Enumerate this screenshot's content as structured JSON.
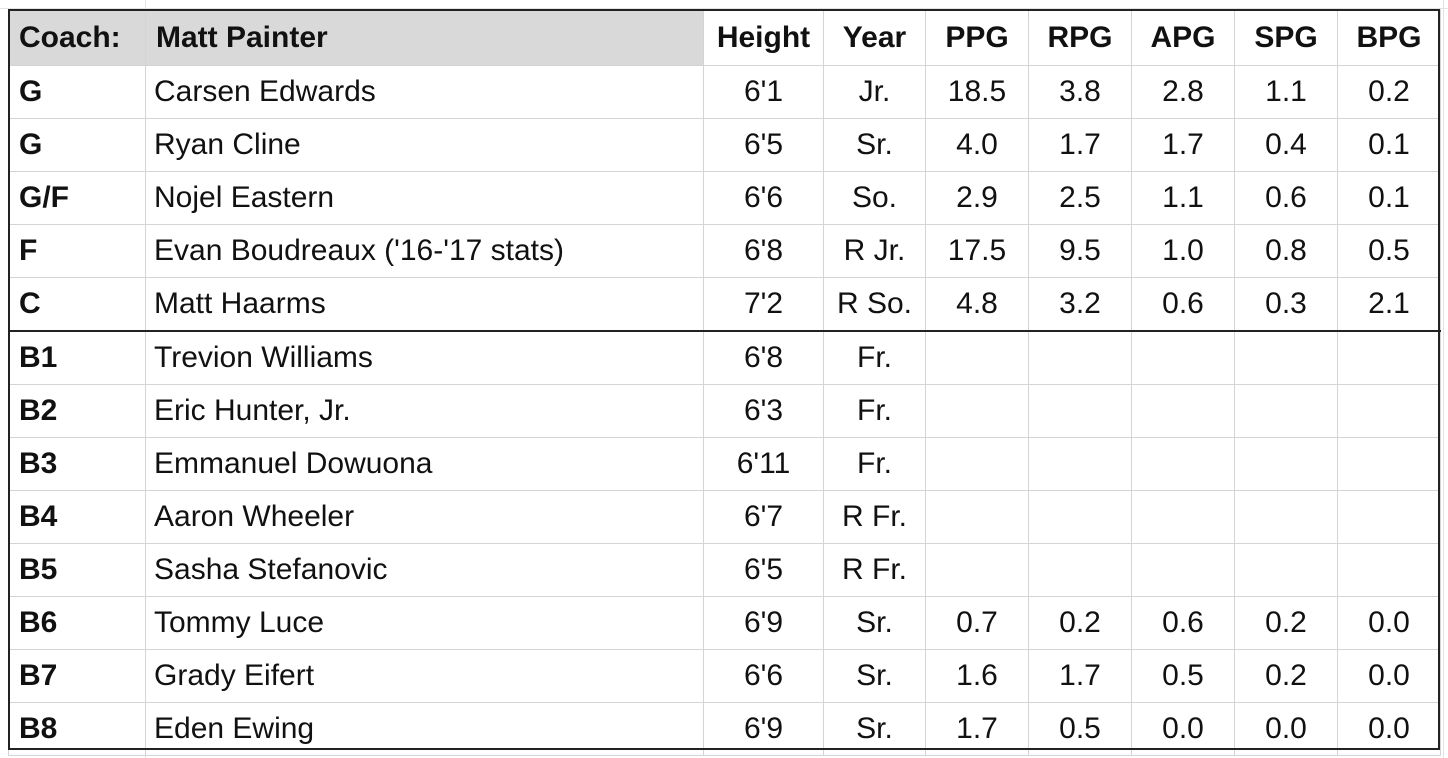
{
  "header": {
    "coach_label": "Coach:",
    "coach_name": "Matt Painter",
    "columns": [
      "Height",
      "Year",
      "PPG",
      "RPG",
      "APG",
      "SPG",
      "BPG"
    ]
  },
  "starters": [
    {
      "pos": "G",
      "name": "Carsen Edwards",
      "height": "6'1",
      "year": "Jr.",
      "ppg": "18.5",
      "rpg": "3.8",
      "apg": "2.8",
      "spg": "1.1",
      "bpg": "0.2"
    },
    {
      "pos": "G",
      "name": "Ryan Cline",
      "height": "6'5",
      "year": "Sr.",
      "ppg": "4.0",
      "rpg": "1.7",
      "apg": "1.7",
      "spg": "0.4",
      "bpg": "0.1"
    },
    {
      "pos": "G/F",
      "name": "Nojel Eastern",
      "height": "6'6",
      "year": "So.",
      "ppg": "2.9",
      "rpg": "2.5",
      "apg": "1.1",
      "spg": "0.6",
      "bpg": "0.1"
    },
    {
      "pos": "F",
      "name": "Evan Boudreaux ('16-'17 stats)",
      "height": "6'8",
      "year": "R Jr.",
      "ppg": "17.5",
      "rpg": "9.5",
      "apg": "1.0",
      "spg": "0.8",
      "bpg": "0.5"
    },
    {
      "pos": "C",
      "name": "Matt Haarms",
      "height": "7'2",
      "year": "R So.",
      "ppg": "4.8",
      "rpg": "3.2",
      "apg": "0.6",
      "spg": "0.3",
      "bpg": "2.1"
    }
  ],
  "bench": [
    {
      "pos": "B1",
      "name": "Trevion Williams",
      "height": "6'8",
      "year": "Fr.",
      "ppg": "",
      "rpg": "",
      "apg": "",
      "spg": "",
      "bpg": ""
    },
    {
      "pos": "B2",
      "name": "Eric Hunter, Jr.",
      "height": "6'3",
      "year": "Fr.",
      "ppg": "",
      "rpg": "",
      "apg": "",
      "spg": "",
      "bpg": ""
    },
    {
      "pos": "B3",
      "name": "Emmanuel Dowuona",
      "height": "6'11",
      "year": "Fr.",
      "ppg": "",
      "rpg": "",
      "apg": "",
      "spg": "",
      "bpg": ""
    },
    {
      "pos": "B4",
      "name": "Aaron Wheeler",
      "height": "6'7",
      "year": "R Fr.",
      "ppg": "",
      "rpg": "",
      "apg": "",
      "spg": "",
      "bpg": ""
    },
    {
      "pos": "B5",
      "name": "Sasha Stefanovic",
      "height": "6'5",
      "year": "R Fr.",
      "ppg": "",
      "rpg": "",
      "apg": "",
      "spg": "",
      "bpg": ""
    },
    {
      "pos": "B6",
      "name": "Tommy Luce",
      "height": "6'9",
      "year": "Sr.",
      "ppg": "0.7",
      "rpg": "0.2",
      "apg": "0.6",
      "spg": "0.2",
      "bpg": "0.0"
    },
    {
      "pos": "B7",
      "name": "Grady Eifert",
      "height": "6'6",
      "year": "Sr.",
      "ppg": "1.6",
      "rpg": "1.7",
      "apg": "0.5",
      "spg": "0.2",
      "bpg": "0.0"
    },
    {
      "pos": "B8",
      "name": "Eden Ewing",
      "height": "6'9",
      "year": "Sr.",
      "ppg": "1.7",
      "rpg": "0.5",
      "apg": "0.0",
      "spg": "0.0",
      "bpg": "0.0"
    }
  ]
}
